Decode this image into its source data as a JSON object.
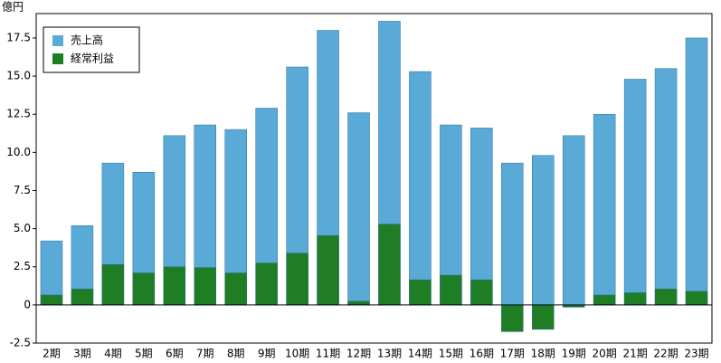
{
  "chart_data": {
    "type": "bar",
    "y_label": "億円",
    "categories": [
      "2期",
      "3期",
      "4期",
      "5期",
      "6期",
      "7期",
      "8期",
      "9期",
      "10期",
      "11期",
      "12期",
      "13期",
      "14期",
      "15期",
      "16期",
      "17期",
      "18期",
      "19期",
      "20期",
      "21期",
      "22期",
      "23期"
    ],
    "series": [
      {
        "name": "売上高",
        "color": "#5aaad8",
        "values": [
          4.2,
          5.2,
          9.3,
          8.7,
          11.1,
          11.8,
          11.5,
          12.9,
          15.6,
          18.0,
          12.6,
          18.6,
          15.3,
          11.8,
          11.6,
          9.3,
          9.8,
          11.1,
          12.5,
          14.8,
          15.5,
          17.5
        ]
      },
      {
        "name": "経常利益",
        "color": "#1f7d24",
        "values": [
          0.65,
          1.05,
          2.65,
          2.1,
          2.5,
          2.45,
          2.1,
          2.75,
          3.4,
          4.55,
          0.25,
          5.3,
          1.65,
          1.95,
          1.65,
          -1.75,
          -1.6,
          -0.15,
          0.65,
          0.8,
          1.05,
          0.9
        ]
      }
    ],
    "ylim": [
      -2.5,
      19.1
    ],
    "yticks": [
      -2.5,
      0,
      2.5,
      {
        "value": 5,
        "label": "5.0"
      },
      {
        "value": 7.5,
        "label": "7.5"
      },
      {
        "value": 10,
        "label": "10.0"
      },
      12.5,
      {
        "value": 15,
        "label": "15.0"
      },
      17.5
    ],
    "overlap": true,
    "legend": "top-left"
  }
}
